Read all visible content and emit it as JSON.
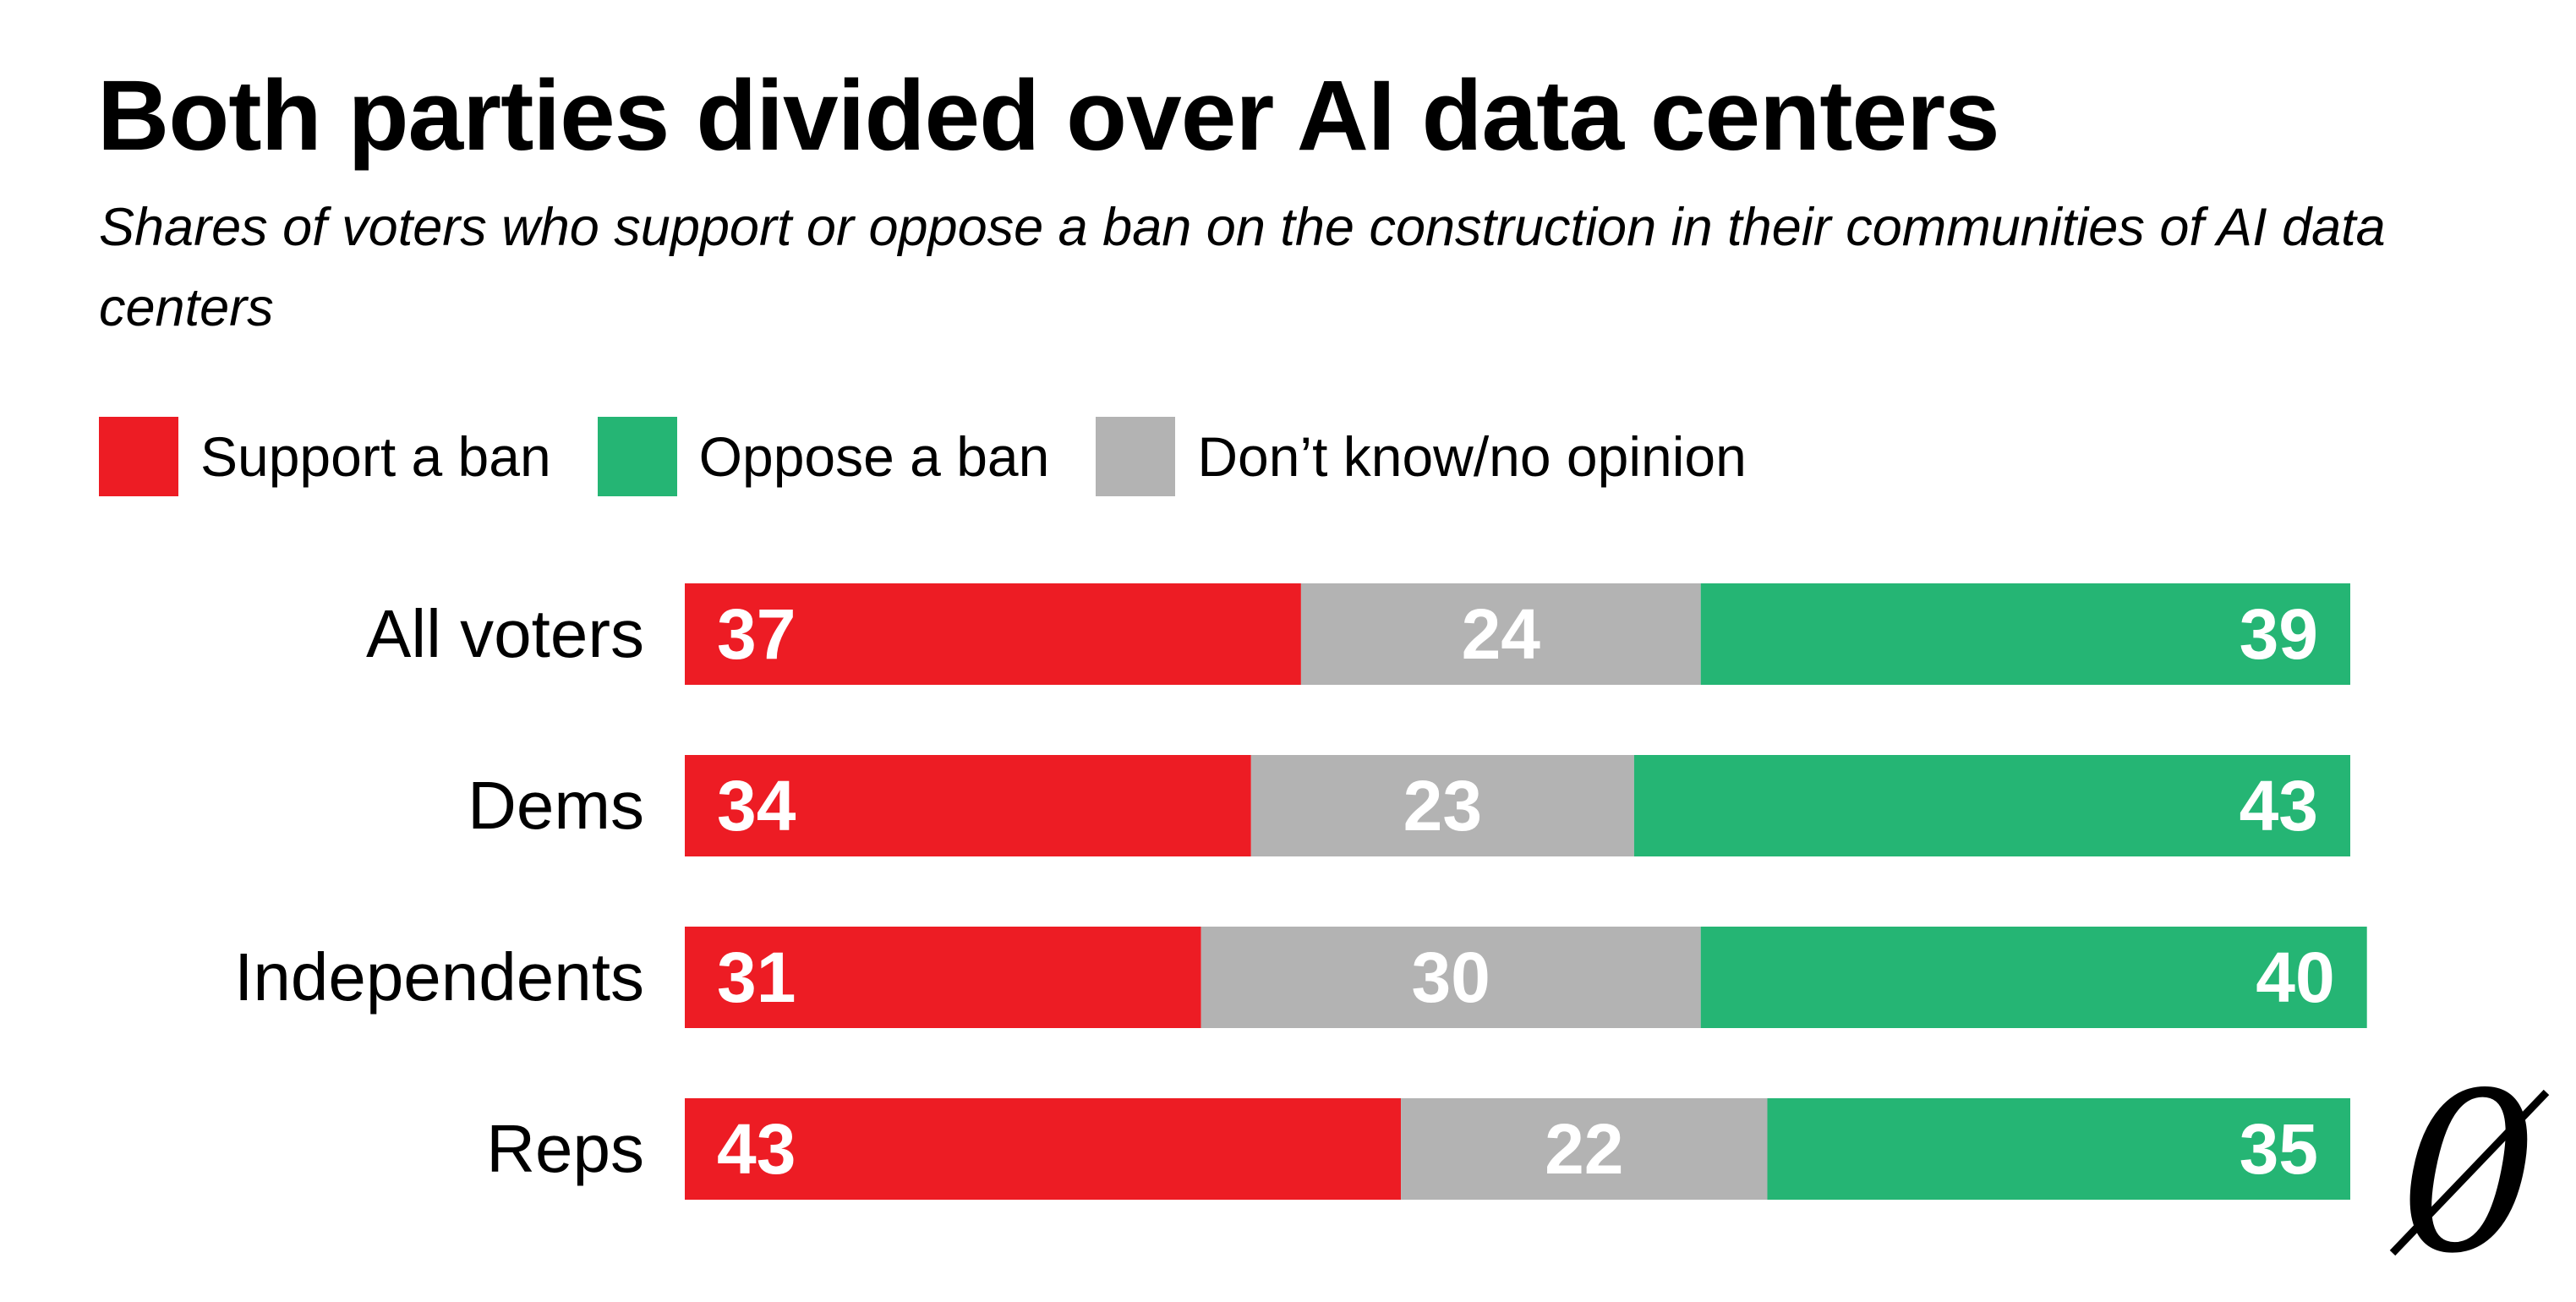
{
  "title": "Both parties divided over AI data centers",
  "subtitle": "Shares of voters who support or oppose a ban on the construction in their communities of AI data centers",
  "legend": [
    {
      "label": "Support a ban",
      "color": "#ed1c24"
    },
    {
      "label": "Oppose a ban",
      "color": "#25b574"
    },
    {
      "label": "Don’t know/no opinion",
      "color": "#b3b3b3"
    }
  ],
  "chart_data": {
    "type": "bar",
    "orientation": "horizontal",
    "stacked": true,
    "categories": [
      "All voters",
      "Dems",
      "Independents",
      "Reps"
    ],
    "series": [
      {
        "name": "Support a ban",
        "color": "#ed1c24",
        "values": [
          37,
          34,
          31,
          43
        ]
      },
      {
        "name": "Don’t know/no opinion",
        "color": "#b3b3b3",
        "values": [
          24,
          23,
          30,
          22
        ]
      },
      {
        "name": "Oppose a ban",
        "color": "#25b574",
        "values": [
          39,
          43,
          40,
          35
        ]
      }
    ],
    "xlim": [
      0,
      100
    ],
    "grid": false,
    "legend_position": "top-left"
  },
  "logo": {
    "glyph": "0",
    "name": "zero-slash-logo"
  }
}
